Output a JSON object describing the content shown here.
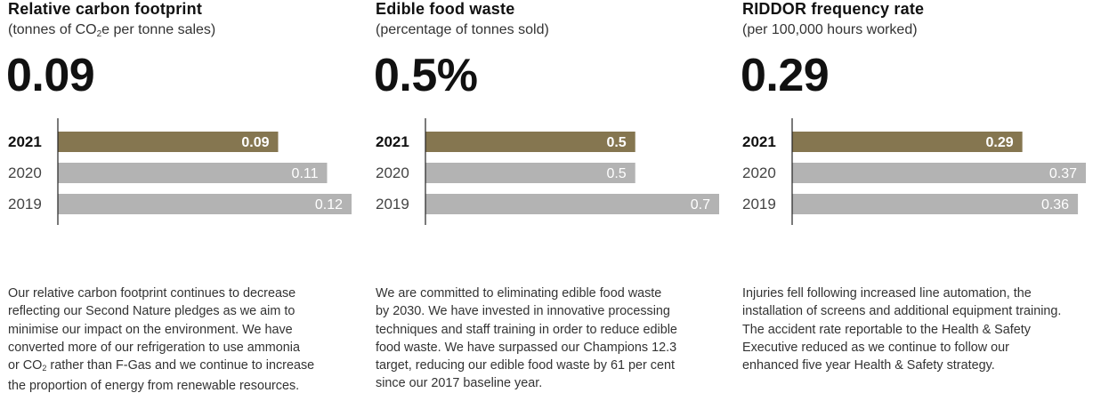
{
  "colors": {
    "highlight": "#857650",
    "muted": "#b3b3b3",
    "axis": "#222222"
  },
  "panels": [
    {
      "title": "Relative carbon footprint",
      "subtitle_pre": "(tonnes of CO",
      "subtitle_sub": "2",
      "subtitle_post": "e per tonne sales)",
      "headline": "0.09",
      "description_lines": [
        {
          "pre": "Our relative carbon footprint continues to decrease"
        },
        {
          "pre": "reflecting our Second Nature pledges as we aim to"
        },
        {
          "pre": "minimise our impact on the environment. We have"
        },
        {
          "pre": "converted more of our refrigeration to use ammonia"
        },
        {
          "pre": "or CO",
          "sub": "2",
          "post": " rather than F-Gas and we continue to increase"
        },
        {
          "pre": "the proportion of energy from renewable resources."
        }
      ]
    },
    {
      "title": "Edible food waste",
      "subtitle_pre": "(percentage of tonnes sold)",
      "headline": "0.5%",
      "description_lines": [
        {
          "pre": "We are committed to eliminating edible food waste"
        },
        {
          "pre": "by 2030. We have invested in innovative processing"
        },
        {
          "pre": "techniques and staff training in order to reduce edible"
        },
        {
          "pre": "food waste. We have surpassed our Champions 12.3"
        },
        {
          "pre": "target, reducing our edible food waste by 61 per cent"
        },
        {
          "pre": "since our 2017 baseline year."
        }
      ]
    },
    {
      "title": "RIDDOR frequency rate",
      "subtitle_pre": "(per 100,000 hours worked)",
      "headline": "0.29",
      "description_lines": [
        {
          "pre": "Injuries fell following increased line automation, the"
        },
        {
          "pre": "installation of screens and additional equipment training."
        },
        {
          "pre": "The accident rate reportable to the Health & Safety"
        },
        {
          "pre": "Executive reduced as we continue to follow our"
        },
        {
          "pre": "enhanced five year Health & Safety strategy."
        }
      ]
    }
  ],
  "chart_data": [
    {
      "type": "bar",
      "orientation": "horizontal",
      "title": "Relative carbon footprint",
      "categories": [
        "2021",
        "2020",
        "2019"
      ],
      "values": [
        0.09,
        0.11,
        0.12
      ],
      "labels": [
        "0.09",
        "0.11",
        "0.12"
      ],
      "xlim": [
        0,
        0.12
      ],
      "highlight": "2021"
    },
    {
      "type": "bar",
      "orientation": "horizontal",
      "title": "Edible food waste",
      "categories": [
        "2021",
        "2020",
        "2019"
      ],
      "values": [
        0.5,
        0.5,
        0.7
      ],
      "labels": [
        "0.5",
        "0.5",
        "0.7"
      ],
      "xlim": [
        0,
        0.7
      ],
      "highlight": "2021"
    },
    {
      "type": "bar",
      "orientation": "horizontal",
      "title": "RIDDOR frequency rate",
      "categories": [
        "2021",
        "2020",
        "2019"
      ],
      "values": [
        0.29,
        0.37,
        0.36
      ],
      "labels": [
        "0.29",
        "0.37",
        "0.36"
      ],
      "xlim": [
        0,
        0.37
      ],
      "highlight": "2021"
    }
  ]
}
